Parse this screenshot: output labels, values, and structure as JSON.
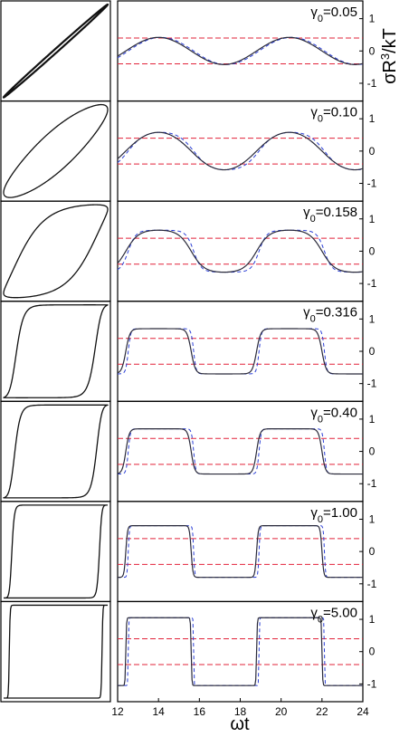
{
  "figure": {
    "xlabel": "ωt",
    "ylabel": "σR³/kT",
    "gamma_symbol": "γ",
    "gamma_subscript": "0"
  },
  "chart_data": {
    "type": "line",
    "panel_count": 7,
    "x_range": [
      12,
      24
    ],
    "x_ticks": [
      12,
      14,
      16,
      18,
      20,
      22,
      24
    ],
    "y_ticks": [
      1,
      0,
      -1
    ],
    "colors": {
      "solid": "#2a2a3a",
      "dashed_blue": "#2b3fd6",
      "dashed_red": "#e2233a",
      "frame": "#000000"
    },
    "panels": [
      {
        "gamma": "0.05",
        "ylim": [
          -1.55,
          1.55
        ],
        "amplitude": 0.42,
        "red_levels": [
          0.4,
          -0.4
        ],
        "sharpness": 0.0,
        "lissajous_phase": 0.06
      },
      {
        "gamma": "0.10",
        "ylim": [
          -1.55,
          1.55
        ],
        "amplitude": 0.58,
        "red_levels": [
          0.4,
          -0.4
        ],
        "sharpness": 0.5,
        "lissajous_phase": 0.5
      },
      {
        "gamma": "0.158",
        "ylim": [
          -1.55,
          1.55
        ],
        "amplitude": 0.65,
        "red_levels": [
          0.4,
          -0.4
        ],
        "sharpness": 1.5,
        "lissajous_phase": 0.7
      },
      {
        "gamma": "0.316",
        "ylim": [
          -1.55,
          1.55
        ],
        "amplitude": 0.7,
        "red_levels": [
          0.4,
          -0.4
        ],
        "sharpness": 5.0,
        "lissajous_phase": 0.85
      },
      {
        "gamma": "0.40",
        "ylim": [
          -1.55,
          1.55
        ],
        "amplitude": 0.7,
        "red_levels": [
          0.4,
          -0.4
        ],
        "sharpness": 6.0,
        "lissajous_phase": 0.9
      },
      {
        "gamma": "1.00",
        "ylim": [
          -1.55,
          1.55
        ],
        "amplitude": 0.8,
        "red_levels": [
          0.4,
          -0.4
        ],
        "sharpness": 12.0,
        "lissajous_phase": 1.0
      },
      {
        "gamma": "5.00",
        "ylim": [
          -1.55,
          1.55
        ],
        "amplitude": 1.05,
        "red_levels": [
          0.4,
          -0.4
        ],
        "sharpness": 30.0,
        "lissajous_phase": 1.1
      }
    ]
  }
}
